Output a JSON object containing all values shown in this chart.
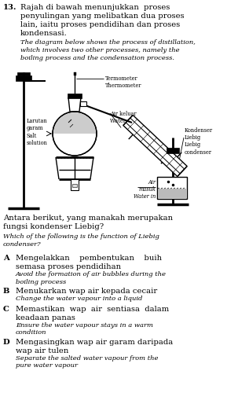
{
  "bg_color": "#ffffff",
  "text_color": "#000000",
  "fs_title": 7.2,
  "fs_italic": 6.0,
  "fs_opt_malay": 7.2,
  "fs_opt_eng": 6.0,
  "fs_diagram": 4.8,
  "fs_diagram_italic": 4.2,
  "title_malay": "Rajah di bawah menunjukkan proses\npenyulingan yang melibatkan dua proses\nlain, iaitu proses pendidihan dan proses\nkondensasi.",
  "title_english": "The diagram below shows the process of distillation,\nwhich involves two other processes, namely the\nboiling process and the condensation process.",
  "question_malay": "Antara berikut, yang manakah merupakan\nfungsi kondenser Liebig?",
  "question_english": "Which of the following is the function of Liebig\ncondenser?",
  "options": [
    {
      "label": "A",
      "malay": "Mengelakkan    pembentukan    buih\nsemasa proses pendidihan",
      "english": "Avoid the formation of air bubbles during the\nboiling process"
    },
    {
      "label": "B",
      "malay": "Menukarkan wap air kepada cecair",
      "english": "Change the water vapour into a liquid"
    },
    {
      "label": "C",
      "malay": "Memastikan  wap  air  sentiasa  dalam\nkeadaan panas",
      "english": "Ensure the water vapour stays in a warm\ncondition"
    },
    {
      "label": "D",
      "malay": "Mengasingkan wap air garam daripada\nwap air tulen",
      "english": "Separate the salted water vapour from the\npure water vapour"
    }
  ]
}
